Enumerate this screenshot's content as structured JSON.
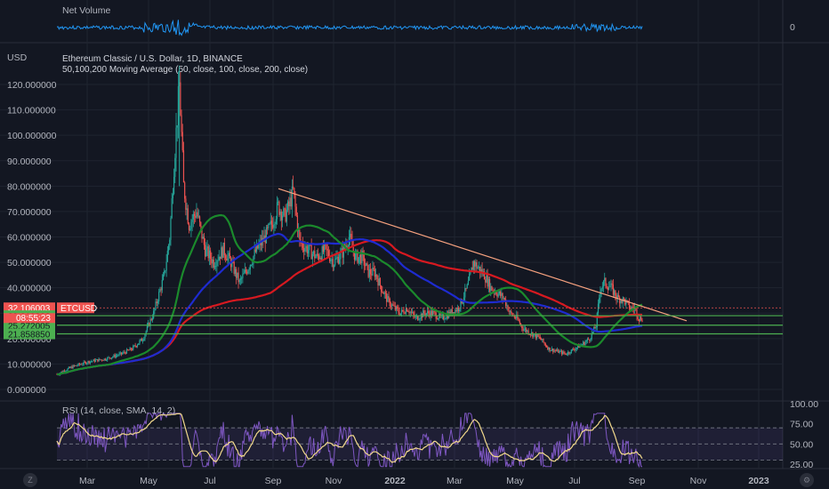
{
  "chart_data": {
    "type": "candlestick",
    "title": "Ethereum Classic / U.S. Dollar, 1D, BINANCE",
    "price_axis_unit": "USD",
    "ylim": [
      0,
      126
    ],
    "y_ticks": [
      "0.000000",
      "10.000000",
      "20.000000",
      "30.000000",
      "40.000000",
      "50.000000",
      "60.000000",
      "70.000000",
      "80.000000",
      "90.000000",
      "100.000000",
      "110.000000",
      "120.000000"
    ],
    "x_ticks": [
      "Mar",
      "May",
      "Jul",
      "Sep",
      "Nov",
      "2022",
      "Mar",
      "May",
      "Jul",
      "Sep",
      "Nov",
      "2023"
    ],
    "ma_label": "50,100,200 Moving Average (50, close, 100, close, 200, close)",
    "series": [
      {
        "name": "ETCUSD",
        "color_up": "#26a69a",
        "color_down": "#ef5350",
        "close_path": [
          [
            0,
            6
          ],
          [
            15,
            9
          ],
          [
            30,
            11
          ],
          [
            45,
            12
          ],
          [
            60,
            14
          ],
          [
            70,
            16
          ],
          [
            80,
            20
          ],
          [
            90,
            30
          ],
          [
            100,
            45
          ],
          [
            105,
            60
          ],
          [
            110,
            95
          ],
          [
            114,
            120
          ],
          [
            118,
            80
          ],
          [
            123,
            65
          ],
          [
            130,
            70
          ],
          [
            138,
            55
          ],
          [
            146,
            50
          ],
          [
            155,
            55
          ],
          [
            162,
            50
          ],
          [
            170,
            42
          ],
          [
            178,
            48
          ],
          [
            186,
            55
          ],
          [
            194,
            60
          ],
          [
            200,
            65
          ],
          [
            206,
            72
          ],
          [
            212,
            68
          ],
          [
            216,
            72
          ],
          [
            220,
            78
          ],
          [
            226,
            58
          ],
          [
            234,
            55
          ],
          [
            242,
            52
          ],
          [
            250,
            55
          ],
          [
            258,
            50
          ],
          [
            266,
            54
          ],
          [
            272,
            60
          ],
          [
            278,
            52
          ],
          [
            284,
            52
          ],
          [
            290,
            46
          ],
          [
            296,
            46
          ],
          [
            302,
            40
          ],
          [
            308,
            35
          ],
          [
            314,
            32
          ],
          [
            320,
            30
          ],
          [
            326,
            32
          ],
          [
            334,
            28
          ],
          [
            342,
            30
          ],
          [
            350,
            30
          ],
          [
            358,
            28
          ],
          [
            366,
            30
          ],
          [
            374,
            32
          ],
          [
            382,
            40
          ],
          [
            388,
            50
          ],
          [
            392,
            48
          ],
          [
            398,
            45
          ],
          [
            404,
            40
          ],
          [
            410,
            38
          ],
          [
            416,
            36
          ],
          [
            422,
            30
          ],
          [
            428,
            28
          ],
          [
            434,
            24
          ],
          [
            442,
            22
          ],
          [
            450,
            20
          ],
          [
            458,
            16
          ],
          [
            466,
            15
          ],
          [
            474,
            14
          ],
          [
            482,
            16
          ],
          [
            490,
            18
          ],
          [
            496,
            20
          ],
          [
            502,
            25
          ],
          [
            506,
            40
          ],
          [
            510,
            42
          ],
          [
            516,
            40
          ],
          [
            522,
            36
          ],
          [
            528,
            35
          ],
          [
            534,
            32
          ],
          [
            538,
            32
          ],
          [
            542,
            28
          ]
        ]
      },
      {
        "name": "MA50",
        "color": "#1b8a2c"
      },
      {
        "name": "MA100",
        "color": "#1e2bd0"
      },
      {
        "name": "MA200",
        "color": "#d71920"
      }
    ],
    "horizontal_levels": [
      {
        "value": 32.106003,
        "label": "32.106003",
        "color": "#ef5350",
        "style": "dotted"
      },
      {
        "value": 29.010222,
        "label": "29.010222",
        "color": "#4caf50"
      },
      {
        "value": 25.272005,
        "label": "25.272005",
        "color": "#4caf50"
      },
      {
        "value": 21.85885,
        "label": "21.858850",
        "color": "#4caf50"
      }
    ],
    "countdown": "08:55:23",
    "symbol_badge": "ETCUSD",
    "trendline": {
      "from": {
        "date": "2021-09-01",
        "price": 79
      },
      "to": {
        "date": "2022-10-10",
        "price": 27
      },
      "color": "#f7a27f"
    }
  },
  "panes": {
    "net_volume": {
      "label": "Net Volume",
      "right_value": "0"
    },
    "rsi": {
      "label": "RSI (14, close, SMA, 14, 2)",
      "ticks": [
        "100.00",
        "75.00",
        "50.00",
        "25.00"
      ],
      "ylim": [
        20,
        100
      ],
      "bands": [
        30,
        70
      ]
    }
  },
  "corner_icons": {
    "left": "Z",
    "right": "gear-icon"
  }
}
